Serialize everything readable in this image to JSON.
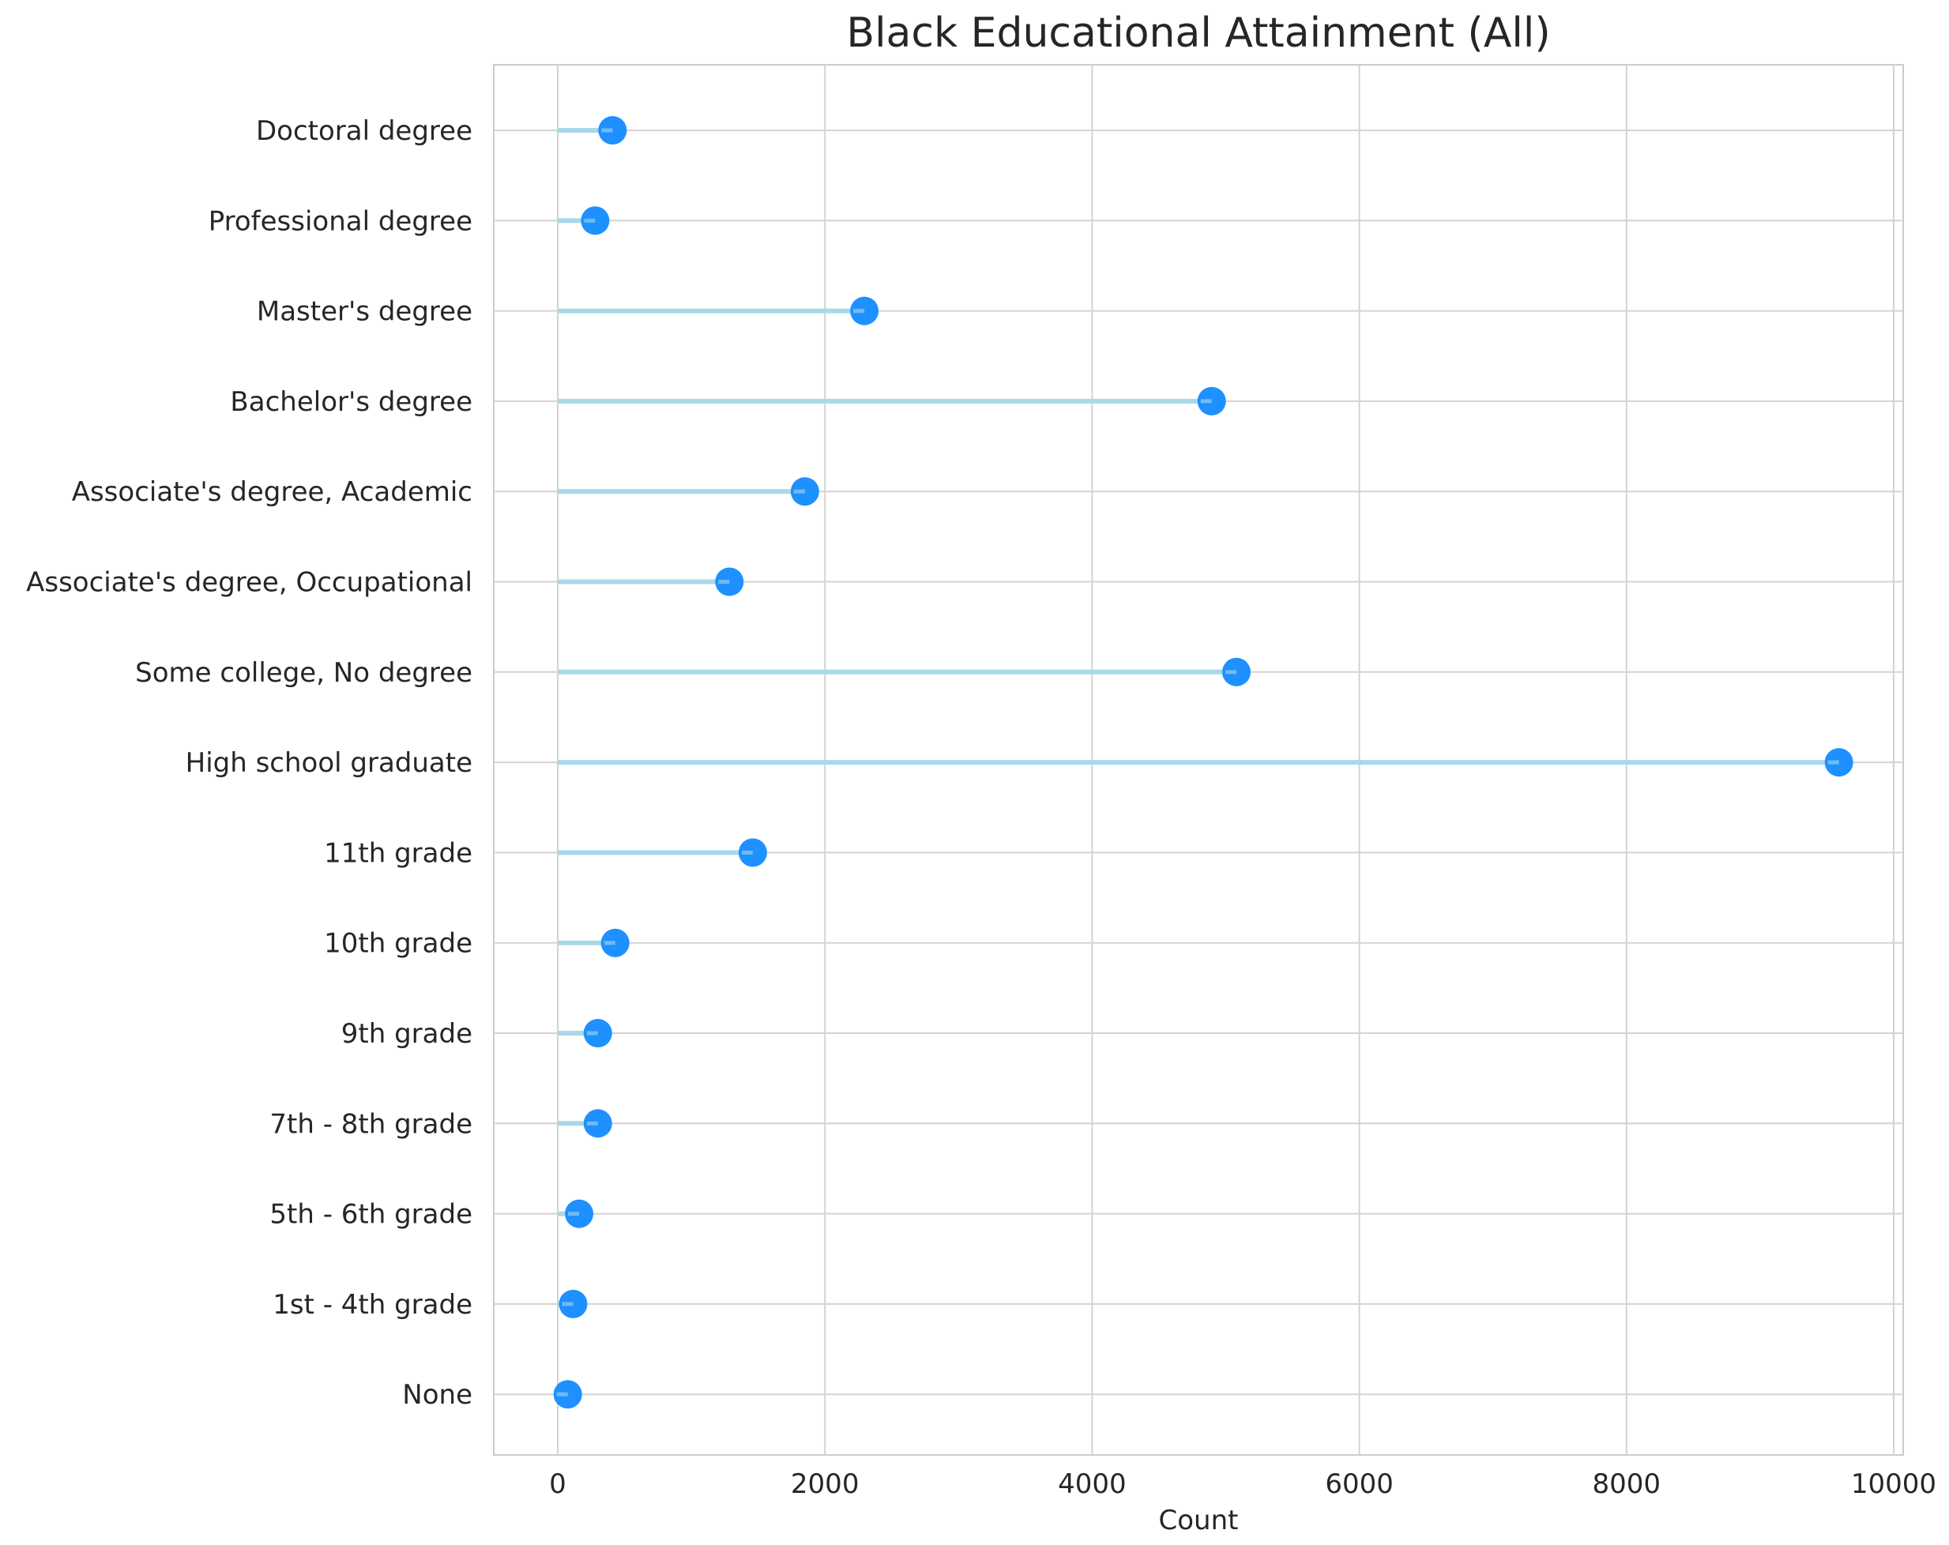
{
  "chart_data": {
    "type": "lollipop",
    "title": "Black Educational Attainment (All)",
    "xlabel": "Count",
    "ylabel": "",
    "xlim": [
      -480,
      10080
    ],
    "xticks": [
      0,
      2000,
      4000,
      6000,
      8000,
      10000
    ],
    "xtick_labels": [
      "0",
      "2000",
      "4000",
      "6000",
      "8000",
      "10000"
    ],
    "grid": true,
    "legend": null,
    "categories": [
      "Doctoral degree",
      "Professional degree",
      "Master's degree",
      "Bachelor's degree",
      "Associate's degree, Academic",
      "Associate's degree, Occupational",
      "Some college, No degree",
      "High school graduate",
      "11th grade",
      "10th grade",
      "9th grade",
      "7th - 8th grade",
      "5th - 6th grade",
      "1st - 4th grade",
      "None"
    ],
    "values": [
      410,
      280,
      2295,
      4895,
      1850,
      1285,
      5080,
      9590,
      1460,
      430,
      300,
      300,
      160,
      115,
      75
    ],
    "colors": {
      "stem": "#a8d8ea",
      "marker": "#1e90ff",
      "grid": "#d3d3d3",
      "axes_edge": "#cccccc",
      "text": "#262626"
    }
  }
}
